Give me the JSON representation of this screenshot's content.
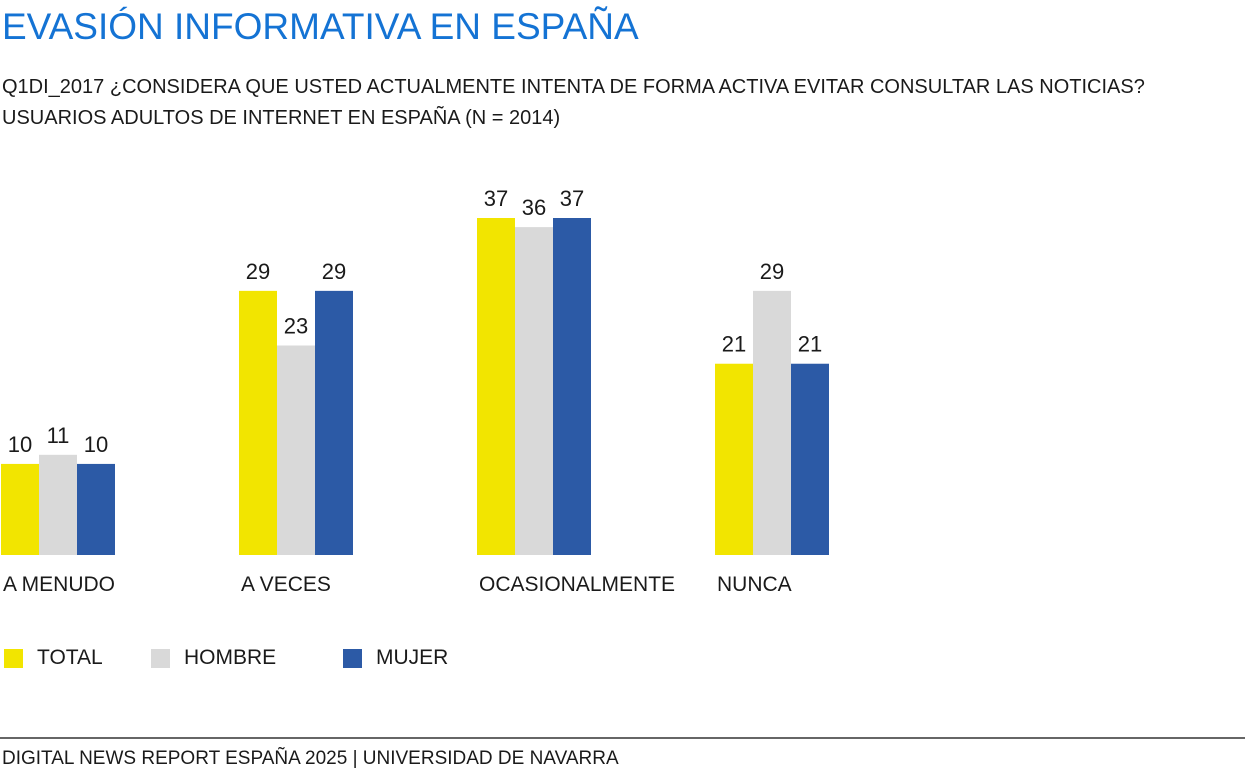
{
  "title": "EVASIÓN INFORMATIVA EN ESPAÑA",
  "subtitle_line1": "Q1DI_2017 ¿CONSIDERA QUE USTED ACTUALMENTE INTENTA DE FORMA ACTIVA EVITAR CONSULTAR LAS NOTICIAS?",
  "subtitle_line2": "USUARIOS ADULTOS DE INTERNET EN ESPAÑA (N = 2014)",
  "footer": "DIGITAL NEWS REPORT ESPAÑA 2025 | UNIVERSIDAD DE NAVARRA",
  "chart_data": {
    "type": "bar",
    "categories": [
      "A MENUDO",
      "A VECES",
      "OCASIONALMENTE",
      "NUNCA"
    ],
    "series": [
      {
        "name": "TOTAL",
        "color": "#f2e500",
        "values": [
          10,
          29,
          37,
          21
        ]
      },
      {
        "name": "HOMBRE",
        "color": "#d9d9d9",
        "values": [
          11,
          23,
          36,
          29
        ]
      },
      {
        "name": "MUJER",
        "color": "#2c5aa6",
        "values": [
          10,
          29,
          37,
          21
        ]
      }
    ],
    "ylim": [
      0,
      37
    ],
    "legend": "bottom-left",
    "grid": false
  }
}
